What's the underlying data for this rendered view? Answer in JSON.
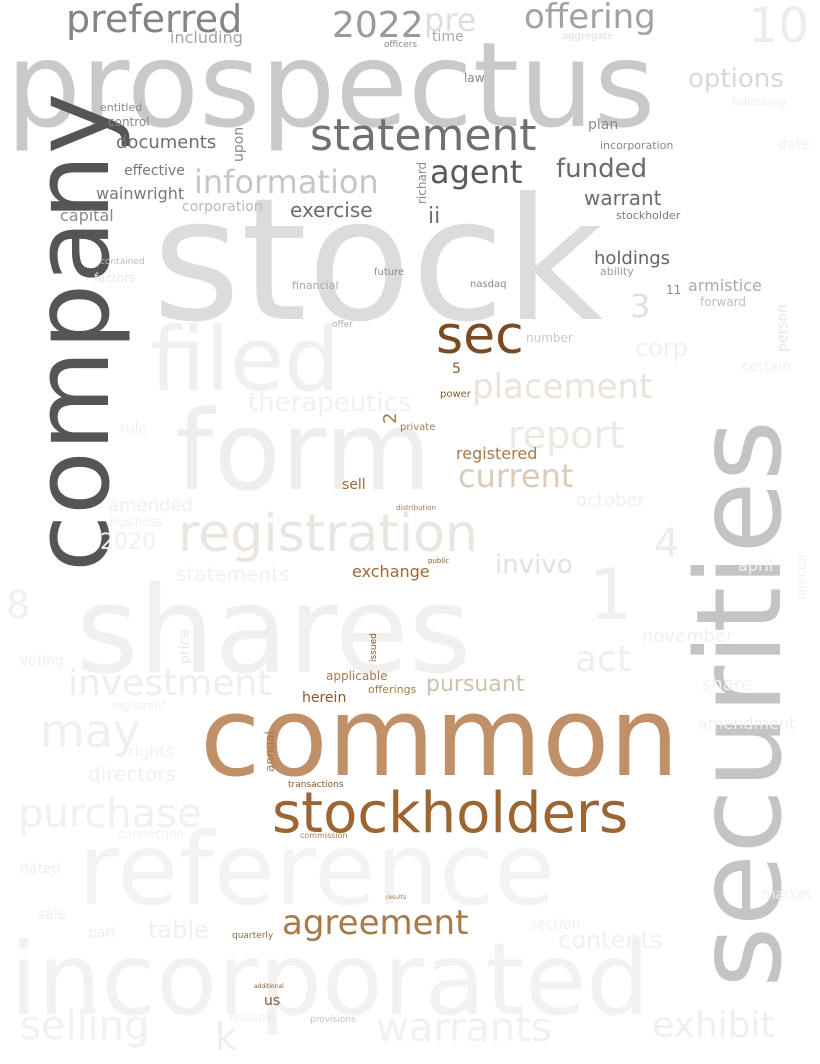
{
  "words": {
    "prospectus": {
      "text": "prospectus",
      "color": "#c9c9c9"
    },
    "stock": {
      "text": "stock",
      "color": "#dcdcdc"
    },
    "securities": {
      "text": "securities",
      "color": "#c4c4c4"
    },
    "company": {
      "text": "company",
      "color": "#555555"
    },
    "common": {
      "text": "common",
      "color": "#c09068"
    },
    "stockholders": {
      "text": "stockholders",
      "color": "#9b6633"
    },
    "statement": {
      "text": "statement",
      "color": "#707070"
    },
    "sec": {
      "text": "sec",
      "color": "#7a4a22"
    },
    "preferred": {
      "text": "preferred",
      "color": "#848484"
    },
    "offering": {
      "text": "offering",
      "color": "#a2a2a2"
    },
    "year_2022": {
      "text": "2022",
      "color": "#9a9a9a"
    },
    "pre": {
      "text": "pre",
      "color": "#dedede"
    },
    "ten": {
      "text": "10",
      "color": "#ececec"
    },
    "including": {
      "text": "including",
      "color": "#a4a4a4"
    },
    "time": {
      "text": "time",
      "color": "#a8a8a8"
    },
    "options": {
      "text": "options",
      "color": "#d8d8d8"
    },
    "information": {
      "text": "information",
      "color": "#c6c6c6"
    },
    "agent": {
      "text": "agent",
      "color": "#5a5a5a"
    },
    "funded": {
      "text": "funded",
      "color": "#6a6a6a"
    },
    "documents": {
      "text": "documents",
      "color": "#6e6e6e"
    },
    "warrant": {
      "text": "warrant",
      "color": "#6c6c6c"
    },
    "exercise": {
      "text": "exercise",
      "color": "#6c6c6c"
    },
    "effective": {
      "text": "effective",
      "color": "#777777"
    },
    "wainwright": {
      "text": "wainwright",
      "color": "#787878"
    },
    "capital": {
      "text": "capital",
      "color": "#8a8a8a"
    },
    "control": {
      "text": "control",
      "color": "#888888"
    },
    "corporation": {
      "text": "corporation",
      "color": "#b8b8b8"
    },
    "holdings": {
      "text": "holdings",
      "color": "#666666"
    },
    "armistice": {
      "text": "armistice",
      "color": "#aaaaaa"
    },
    "forward": {
      "text": "forward",
      "color": "#c0c0c0"
    },
    "plan": {
      "text": "plan",
      "color": "#8a8a8a"
    },
    "incorporation": {
      "text": "incorporation",
      "color": "#8a8a8a"
    },
    "stockholder": {
      "text": "stockholder",
      "color": "#7a7a7a"
    },
    "ability": {
      "text": "ability",
      "color": "#9a9a9a"
    },
    "law": {
      "text": "law",
      "color": "#8a8a8a"
    },
    "ii": {
      "text": "ii",
      "color": "#6e6e6e"
    },
    "upon": {
      "text": "upon",
      "color": "#8a8a8a"
    },
    "richard": {
      "text": "richard",
      "color": "#8a8a8a"
    },
    "entitled": {
      "text": "entitled",
      "color": "#8a8a8a"
    },
    "filed": {
      "text": "filed",
      "color": "#f0f0f0"
    },
    "form": {
      "text": "form",
      "color": "#f0eeec"
    },
    "shares": {
      "text": "shares",
      "color": "#f1f0ef"
    },
    "registration": {
      "text": "registration",
      "color": "#ebe5df"
    },
    "placement": {
      "text": "placement",
      "color": "#ebe3da"
    },
    "therapeutics": {
      "text": "therapeutics",
      "color": "#f0f0f0"
    },
    "report": {
      "text": "report",
      "color": "#ede8e2"
    },
    "current": {
      "text": "current",
      "color": "#dccbb8"
    },
    "registered": {
      "text": "registered",
      "color": "#a87a4a"
    },
    "sell": {
      "text": "sell",
      "color": "#9c6a36"
    },
    "exchange": {
      "text": "exchange",
      "color": "#9c6836"
    },
    "invivo": {
      "text": "invivo",
      "color": "#e4e0dc"
    },
    "act": {
      "text": "act",
      "color": "#eeeeee"
    },
    "pursuant": {
      "text": "pursuant",
      "color": "#cfc0b0"
    },
    "applicable": {
      "text": "applicable",
      "color": "#a87a4a"
    },
    "offerings": {
      "text": "offerings",
      "color": "#a87a4a"
    },
    "herein": {
      "text": "herein",
      "color": "#8a5a2a"
    },
    "annual": {
      "text": "annual",
      "color": "#a87a4a"
    },
    "investment": {
      "text": "investment",
      "color": "#eeeeee"
    },
    "may": {
      "text": "may",
      "color": "#efefef"
    },
    "directors": {
      "text": "directors",
      "color": "#f0f0f0"
    },
    "rights": {
      "text": "rights",
      "color": "#f1f1f1"
    },
    "purchase": {
      "text": "purchase",
      "color": "#f0f0f0"
    },
    "reference": {
      "text": "reference",
      "color": "#f3f3f3"
    },
    "incorporated": {
      "text": "incorporated",
      "color": "#f2f2f2"
    },
    "agreement": {
      "text": "agreement",
      "color": "#a77a4a"
    },
    "table": {
      "text": "table",
      "color": "#efefef"
    },
    "contents": {
      "text": "contents",
      "color": "#f0f0f0"
    },
    "warrants": {
      "text": "warrants",
      "color": "#f1f1f1"
    },
    "selling": {
      "text": "selling",
      "color": "#f1f1f1"
    },
    "exhibit": {
      "text": "exhibit",
      "color": "#efefef"
    },
    "us": {
      "text": "us",
      "color": "#8a5a2a"
    },
    "quarterly": {
      "text": "quarterly",
      "color": "#8a6a4a"
    },
    "transactions": {
      "text": "transactions",
      "color": "#8a5a2a"
    },
    "amended": {
      "text": "amended",
      "color": "#efefef"
    },
    "year_2020": {
      "text": "2020",
      "color": "#f0f0f0"
    },
    "statements": {
      "text": "statements",
      "color": "#f1f1f1"
    },
    "corp": {
      "text": "corp",
      "color": "#f0f0f0"
    },
    "october": {
      "text": "october",
      "color": "#f0f0f0"
    },
    "november": {
      "text": "november",
      "color": "#f0f0f0"
    },
    "amendment": {
      "text": "amendment",
      "color": "#f0f0f0"
    },
    "share": {
      "text": "share",
      "color": "#f1f1f1"
    },
    "april": {
      "text": "april",
      "color": "#f2f2f2"
    },
    "person": {
      "text": "person",
      "color": "#e6e6e6"
    },
    "certain": {
      "text": "certain",
      "color": "#f0f0f0"
    },
    "date": {
      "text": "date",
      "color": "#f0f0f0"
    },
    "private": {
      "text": "private",
      "color": "#a87a4a"
    },
    "power": {
      "text": "power",
      "color": "#8a5a2a"
    },
    "number": {
      "text": "number",
      "color": "#c8c8c8"
    },
    "financial": {
      "text": "financial",
      "color": "#aaaaaa"
    },
    "nasdaq": {
      "text": "nasdaq",
      "color": "#8a8a8a"
    },
    "future": {
      "text": "future",
      "color": "#8a8a8a"
    },
    "factors": {
      "text": "factors",
      "color": "#e6e6e6"
    },
    "contained": {
      "text": "contained",
      "color": "#bbbbbb"
    },
    "offer": {
      "text": "offer",
      "color": "#aaaaaa"
    },
    "officers": {
      "text": "officers",
      "color": "#8a8a8a"
    },
    "aggregate": {
      "text": "aggregate",
      "color": "#dddddd"
    },
    "following": {
      "text": "following",
      "color": "#f0f0f0"
    },
    "price": {
      "text": "price",
      "color": "#e8e8e8"
    },
    "voting": {
      "text": "voting",
      "color": "#eeeeee"
    },
    "rule": {
      "text": "rule",
      "color": "#eeeeee"
    },
    "business": {
      "text": "business",
      "color": "#f0f0f0"
    },
    "connection": {
      "text": "connection",
      "color": "#f0f0f0"
    },
    "dated": {
      "text": "dated",
      "color": "#eeeeee"
    },
    "sale": {
      "text": "sale",
      "color": "#eeeeee"
    },
    "part": {
      "text": "part",
      "color": "#eeeeee"
    },
    "section": {
      "text": "section",
      "color": "#f0f0f0"
    },
    "market": {
      "text": "market",
      "color": "#f0f0f0"
    },
    "director": {
      "text": "director",
      "color": "#f0f0f0"
    },
    "provisions": {
      "text": "provisions",
      "color": "#cfc0b0"
    },
    "issuable": {
      "text": "issuable",
      "color": "#eeeeee"
    },
    "commission": {
      "text": "commission",
      "color": "#a87a4a"
    },
    "distribution": {
      "text": "distribution",
      "color": "#a87a4a"
    },
    "public": {
      "text": "public",
      "color": "#8a5a2a"
    },
    "issued": {
      "text": "issued",
      "color": "#8a5a2a"
    },
    "results": {
      "text": "results",
      "color": "#a87a4a"
    },
    "additional": {
      "text": "additional",
      "color": "#8a5a2a"
    },
    "registrant": {
      "text": "registrant",
      "color": "#f0f0f0"
    },
    "n8": {
      "text": "8",
      "color": "#f0f0f0"
    },
    "n1": {
      "text": "1",
      "color": "#f0f0f0"
    },
    "n4": {
      "text": "4",
      "color": "#ececec"
    },
    "n3": {
      "text": "3",
      "color": "#e0e0e0"
    },
    "n5": {
      "text": "5",
      "color": "#8a5a2a"
    },
    "n2": {
      "text": "2",
      "color": "#a87a4a"
    },
    "n11": {
      "text": "11",
      "color": "#8a8a8a"
    },
    "k": {
      "text": "k",
      "color": "#eeeeee"
    }
  }
}
